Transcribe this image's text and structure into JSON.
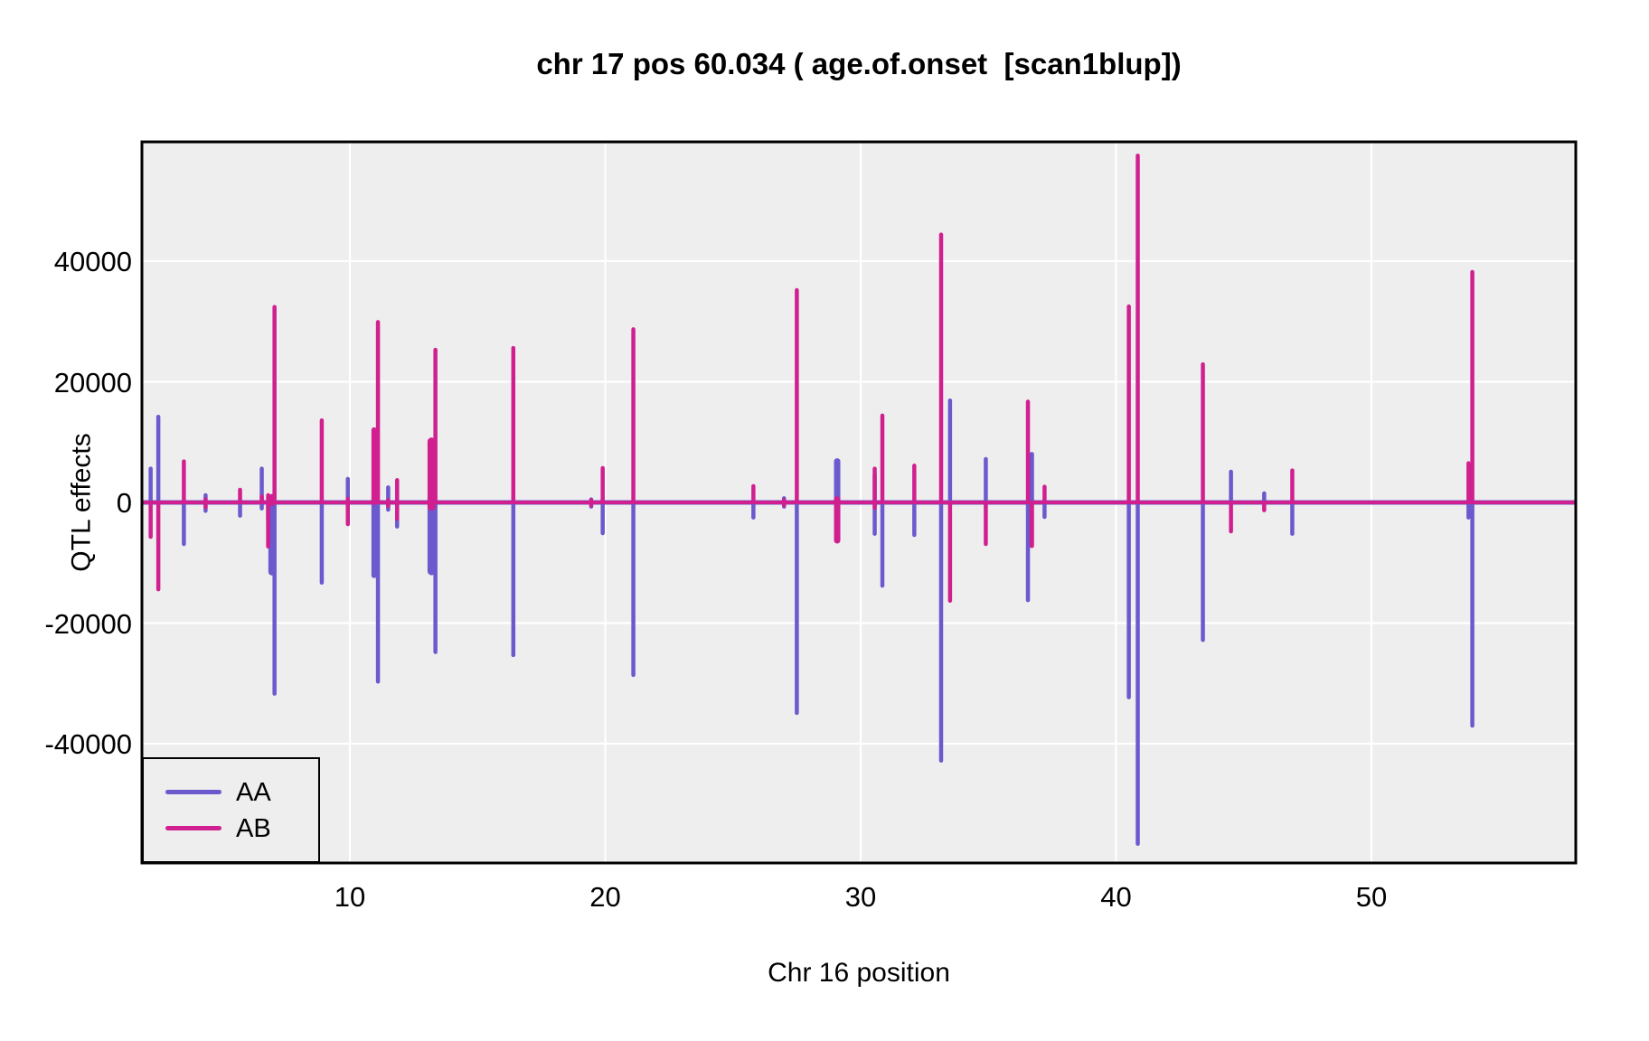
{
  "title": "chr 17 pos 60.034 ( age.of.onset  [scan1blup])",
  "colors": {
    "aa": "#6A5ACD",
    "ab": "#D02090",
    "panel_bg": "#EEEEEE",
    "grid": "#FFFFFF",
    "panel_border": "#000000",
    "text": "#000000"
  },
  "legend": {
    "items": [
      {
        "label": "AA",
        "series": "aa"
      },
      {
        "label": "AB",
        "series": "ab"
      }
    ]
  },
  "chart_data": {
    "type": "line",
    "title": "chr 17 pos 60.034 ( age.of.onset  [scan1blup])",
    "xlabel": "Chr 16 position",
    "ylabel": "QTL effects",
    "xlim": [
      1.86,
      58.0
    ],
    "ylim": [
      -59800,
      59800
    ],
    "x_ticks": [
      10,
      20,
      30,
      40,
      50
    ],
    "y_ticks": [
      40000,
      20000,
      0,
      -20000,
      -40000
    ],
    "grid": "on",
    "legend_position": "bottom-left",
    "series": [
      {
        "name": "AA",
        "color_key": "aa",
        "baseline": 0
      },
      {
        "name": "AB",
        "color_key": "ab",
        "baseline": 0
      }
    ],
    "spikes": [
      {
        "x": 2.2,
        "aa": [
          0,
          5600
        ],
        "ab": [
          -5700,
          0
        ]
      },
      {
        "x": 2.5,
        "aa": [
          0,
          14200
        ],
        "ab": [
          -14400,
          0
        ]
      },
      {
        "x": 3.5,
        "aa": [
          -6900,
          0
        ],
        "ab": [
          0,
          6800
        ]
      },
      {
        "x": 4.35,
        "aa": [
          -1400,
          1200
        ],
        "ab": [
          -800,
          500
        ]
      },
      {
        "x": 5.7,
        "aa": [
          -2200,
          400
        ],
        "ab": [
          0,
          2100
        ]
      },
      {
        "x": 6.55,
        "aa": [
          -1000,
          5600
        ],
        "ab": [
          0,
          1000
        ]
      },
      {
        "x": 6.8,
        "aa": [
          -3000,
          0
        ],
        "ab": [
          -7300,
          1200
        ]
      },
      {
        "x": 6.95,
        "aa": [
          -11500,
          600
        ],
        "ab": [
          0,
          800
        ],
        "w": 8
      },
      {
        "x": 7.05,
        "aa": [
          -31700,
          0
        ],
        "ab": [
          0,
          32400
        ]
      },
      {
        "x": 8.9,
        "aa": [
          -13300,
          0
        ],
        "ab": [
          0,
          13600
        ]
      },
      {
        "x": 9.92,
        "aa": [
          -1500,
          3900
        ],
        "ab": [
          -3600,
          600
        ]
      },
      {
        "x": 10.95,
        "aa": [
          -12100,
          0
        ],
        "ab": [
          0,
          12000
        ],
        "w": 6
      },
      {
        "x": 11.1,
        "aa": [
          -29700,
          0
        ],
        "ab": [
          0,
          29900
        ]
      },
      {
        "x": 11.5,
        "aa": [
          -1200,
          2500
        ],
        "ab": [
          -600,
          400
        ]
      },
      {
        "x": 11.85,
        "aa": [
          -4000,
          0
        ],
        "ab": [
          -2700,
          3700
        ]
      },
      {
        "x": 13.2,
        "aa": [
          -11400,
          700
        ],
        "ab": [
          -700,
          10100
        ],
        "w": 9
      },
      {
        "x": 13.35,
        "aa": [
          -24800,
          0
        ],
        "ab": [
          0,
          25300
        ]
      },
      {
        "x": 16.4,
        "aa": [
          -25300,
          0
        ],
        "ab": [
          0,
          25600
        ]
      },
      {
        "x": 19.45,
        "aa": [
          -700,
          500
        ],
        "ab": [
          -500,
          400
        ]
      },
      {
        "x": 19.9,
        "aa": [
          -5100,
          700
        ],
        "ab": [
          0,
          5700
        ]
      },
      {
        "x": 21.1,
        "aa": [
          -28600,
          0
        ],
        "ab": [
          0,
          28700
        ]
      },
      {
        "x": 25.8,
        "aa": [
          -2500,
          0
        ],
        "ab": [
          0,
          2700
        ]
      },
      {
        "x": 27.0,
        "aa": [
          -700,
          700
        ],
        "ab": [
          -500,
          400
        ]
      },
      {
        "x": 27.5,
        "aa": [
          -34900,
          0
        ],
        "ab": [
          0,
          35200
        ]
      },
      {
        "x": 29.08,
        "aa": [
          -5700,
          6800
        ],
        "ab": [
          -6300,
          500
        ],
        "w": 7
      },
      {
        "x": 30.55,
        "aa": [
          -5200,
          4600
        ],
        "ab": [
          -900,
          5600
        ]
      },
      {
        "x": 30.85,
        "aa": [
          -13800,
          0
        ],
        "ab": [
          0,
          14400
        ]
      },
      {
        "x": 32.1,
        "aa": [
          -5400,
          0
        ],
        "ab": [
          0,
          6100
        ]
      },
      {
        "x": 33.15,
        "aa": [
          -42800,
          0
        ],
        "ab": [
          0,
          44400
        ]
      },
      {
        "x": 33.5,
        "aa": [
          0,
          16900
        ],
        "ab": [
          -16300,
          0
        ]
      },
      {
        "x": 34.9,
        "aa": [
          0,
          7200
        ],
        "ab": [
          -6900,
          0
        ]
      },
      {
        "x": 36.55,
        "aa": [
          -16200,
          0
        ],
        "ab": [
          0,
          16700
        ]
      },
      {
        "x": 36.7,
        "aa": [
          0,
          8000
        ],
        "ab": [
          -7200,
          0
        ],
        "w": 5
      },
      {
        "x": 37.2,
        "aa": [
          -2400,
          0
        ],
        "ab": [
          0,
          2600
        ]
      },
      {
        "x": 40.5,
        "aa": [
          -32300,
          0
        ],
        "ab": [
          0,
          32500
        ]
      },
      {
        "x": 40.85,
        "aa": [
          -56600,
          0
        ],
        "ab": [
          0,
          57500
        ]
      },
      {
        "x": 43.4,
        "aa": [
          -22800,
          0
        ],
        "ab": [
          0,
          22900
        ]
      },
      {
        "x": 44.5,
        "aa": [
          0,
          5100
        ],
        "ab": [
          -4800,
          0
        ]
      },
      {
        "x": 45.8,
        "aa": [
          0,
          1500
        ],
        "ab": [
          -1300,
          0
        ]
      },
      {
        "x": 46.9,
        "aa": [
          -5200,
          0
        ],
        "ab": [
          0,
          5300
        ]
      },
      {
        "x": 53.8,
        "aa": [
          -2500,
          0
        ],
        "ab": [
          0,
          6500
        ]
      },
      {
        "x": 53.95,
        "aa": [
          -37000,
          0
        ],
        "ab": [
          0,
          38200
        ]
      }
    ]
  },
  "x_axis": {
    "label": "Chr 16 position"
  },
  "y_axis": {
    "label": "QTL effects"
  }
}
